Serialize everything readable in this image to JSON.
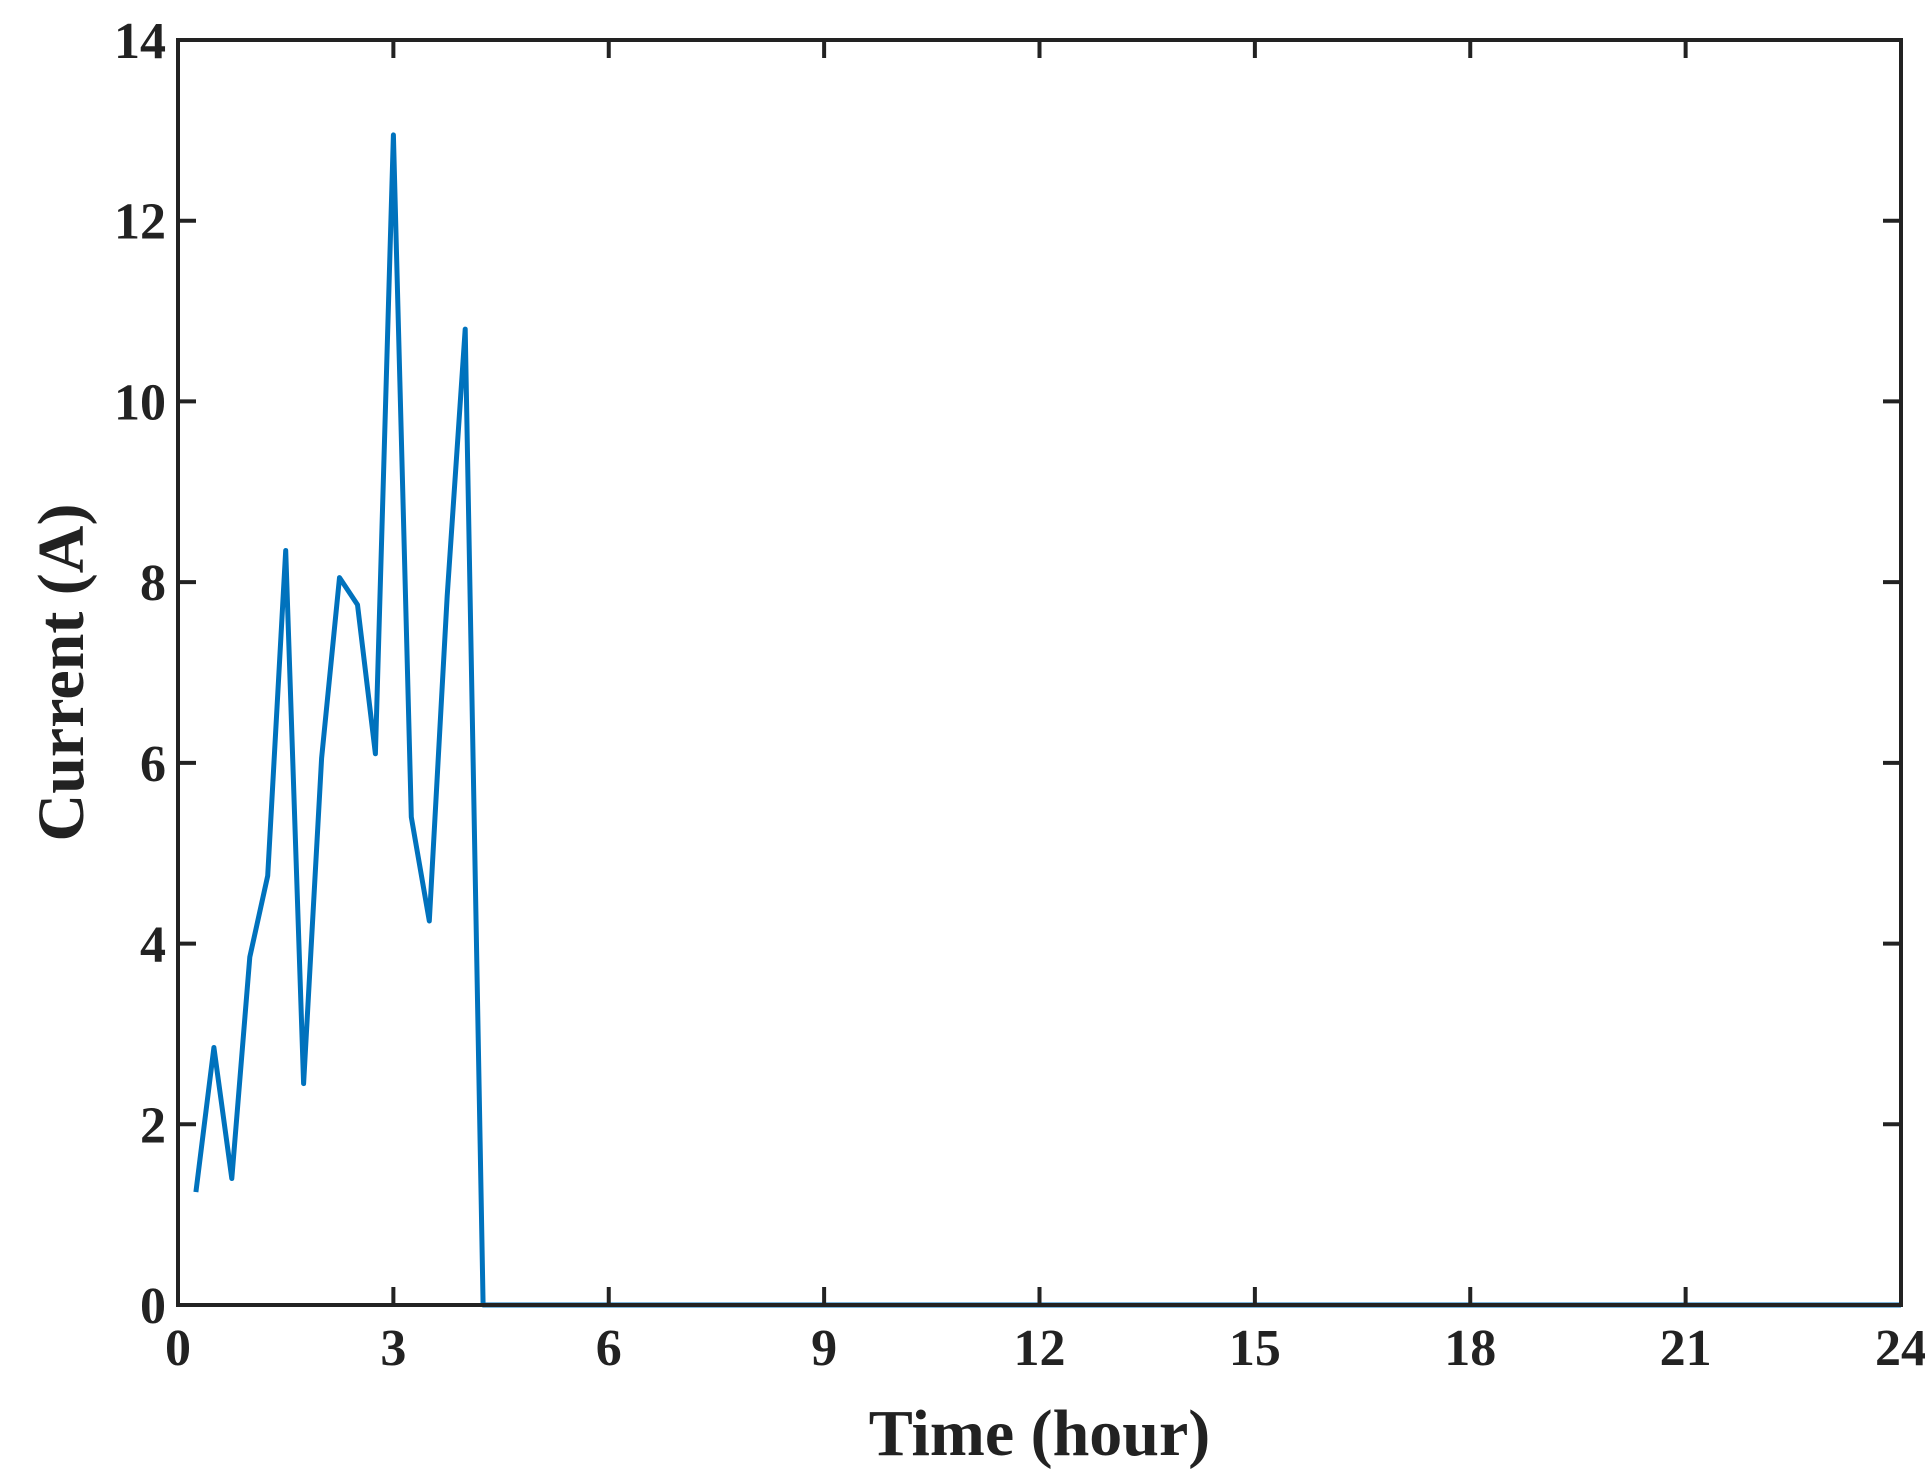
{
  "chart_data": {
    "type": "line",
    "title": "",
    "xlabel": "Time (hour)",
    "ylabel": "Current (A)",
    "xlim": [
      0,
      24
    ],
    "ylim": [
      0,
      14
    ],
    "xticks": [
      0,
      3,
      6,
      9,
      12,
      15,
      18,
      21,
      24
    ],
    "yticks": [
      0,
      2,
      4,
      6,
      8,
      10,
      12,
      14
    ],
    "grid": false,
    "legend": "none",
    "series": [
      {
        "color": "#0072BD",
        "x": [
          0.25,
          0.5,
          0.75,
          1.0,
          1.25,
          1.5,
          1.75,
          2.0,
          2.25,
          2.5,
          2.75,
          3.0,
          3.25,
          3.5,
          3.75,
          4.0,
          4.25,
          4.5,
          5,
          6,
          9,
          12,
          15,
          18,
          21,
          24
        ],
        "y": [
          1.25,
          2.85,
          1.4,
          3.85,
          4.75,
          8.35,
          2.45,
          6.05,
          8.05,
          7.75,
          6.1,
          12.95,
          5.4,
          4.25,
          7.85,
          10.8,
          0,
          0,
          0,
          0,
          0,
          0,
          0,
          0,
          0,
          0
        ]
      }
    ]
  }
}
